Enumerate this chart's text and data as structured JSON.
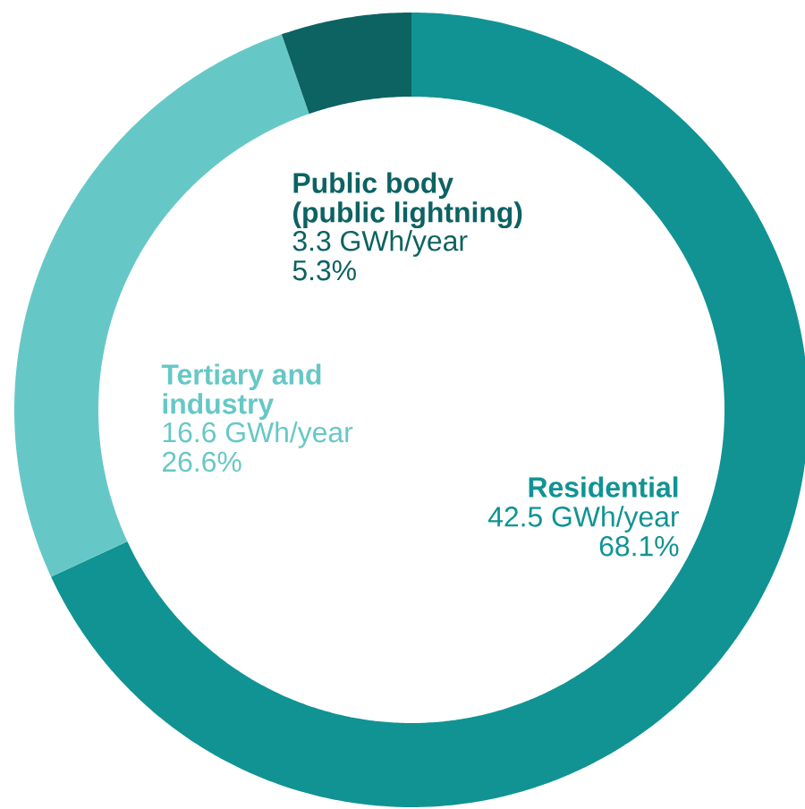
{
  "chart_data": {
    "type": "donut",
    "categories": [
      "Residential",
      "Tertiary and industry",
      "Public body (public lightning)"
    ],
    "values": [
      68.1,
      26.6,
      5.3
    ],
    "colors": [
      "#119393",
      "#66c8c6",
      "#0d6262"
    ],
    "value_labels": [
      "68.1%",
      "26.6%",
      "5.3%"
    ],
    "annotations": [
      "42.5 GWh/year",
      "16.6 GWh/year",
      "3.3 GWh/year"
    ],
    "legend": false
  }
}
